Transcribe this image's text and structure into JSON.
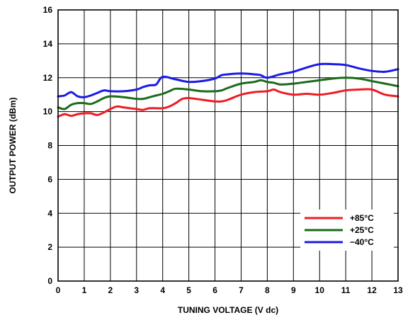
{
  "chart_data": {
    "type": "line",
    "xlabel": "TUNING VOLTAGE (V dc)",
    "ylabel": "OUTPUT POWER (dBm)",
    "xlim": [
      0,
      13
    ],
    "ylim": [
      0,
      16
    ],
    "xticks": [
      "0",
      "1",
      "2",
      "3",
      "4",
      "5",
      "6",
      "7",
      "8",
      "9",
      "10",
      "11",
      "12",
      "13"
    ],
    "yticks": [
      "0",
      "2",
      "4",
      "6",
      "8",
      "10",
      "12",
      "14",
      "16"
    ],
    "grid": true,
    "legend_position": "bottom-right",
    "series": [
      {
        "name": "+85°C",
        "color": "#ee1c24",
        "x": [
          0,
          0.25,
          0.5,
          0.75,
          1,
          1.25,
          1.5,
          1.75,
          2,
          2.25,
          2.5,
          3,
          3.25,
          3.5,
          4,
          4.25,
          4.5,
          4.75,
          5,
          5.5,
          6,
          6.25,
          6.5,
          7,
          7.5,
          8,
          8.25,
          8.5,
          9,
          9.5,
          10,
          10.5,
          11,
          11.5,
          12,
          12.5,
          13
        ],
        "values": [
          9.7,
          9.85,
          9.75,
          9.85,
          9.9,
          9.9,
          9.8,
          9.95,
          10.15,
          10.3,
          10.25,
          10.15,
          10.1,
          10.2,
          10.2,
          10.3,
          10.5,
          10.75,
          10.8,
          10.7,
          10.6,
          10.6,
          10.7,
          11.0,
          11.15,
          11.2,
          11.3,
          11.15,
          11.0,
          11.05,
          11.0,
          11.1,
          11.25,
          11.3,
          11.3,
          11.0,
          10.9
        ]
      },
      {
        "name": "+25°C",
        "color": "#1a6b1a",
        "x": [
          0,
          0.25,
          0.5,
          0.75,
          1,
          1.25,
          1.5,
          1.75,
          2,
          2.5,
          3,
          3.25,
          3.5,
          3.75,
          4,
          4.25,
          4.5,
          5,
          5.5,
          6,
          6.25,
          6.5,
          7,
          7.5,
          7.75,
          8,
          8.25,
          8.5,
          9,
          9.5,
          10,
          10.5,
          11,
          11.5,
          12,
          12.5,
          13
        ],
        "values": [
          10.25,
          10.15,
          10.4,
          10.5,
          10.5,
          10.45,
          10.6,
          10.8,
          10.9,
          10.85,
          10.75,
          10.75,
          10.85,
          10.95,
          11.05,
          11.2,
          11.35,
          11.3,
          11.2,
          11.2,
          11.25,
          11.4,
          11.65,
          11.75,
          11.85,
          11.75,
          11.7,
          11.6,
          11.65,
          11.75,
          11.85,
          11.95,
          12.0,
          11.95,
          11.8,
          11.65,
          11.5
        ]
      },
      {
        "name": "−40°C",
        "color": "#1a1ae6",
        "x": [
          0,
          0.25,
          0.5,
          0.75,
          1,
          1.25,
          1.5,
          1.75,
          2,
          2.5,
          3,
          3.25,
          3.5,
          3.75,
          4,
          4.5,
          5,
          5.5,
          6,
          6.25,
          6.5,
          7,
          7.5,
          7.75,
          8,
          8.5,
          9,
          9.5,
          10,
          10.5,
          11,
          11.5,
          12,
          12.5,
          13
        ],
        "values": [
          10.9,
          10.95,
          11.15,
          10.9,
          10.85,
          10.95,
          11.1,
          11.25,
          11.2,
          11.2,
          11.3,
          11.45,
          11.55,
          11.6,
          12.05,
          11.9,
          11.75,
          11.8,
          11.95,
          12.15,
          12.2,
          12.25,
          12.2,
          12.15,
          12.0,
          12.2,
          12.35,
          12.6,
          12.8,
          12.8,
          12.75,
          12.55,
          12.4,
          12.35,
          12.5
        ]
      }
    ]
  }
}
